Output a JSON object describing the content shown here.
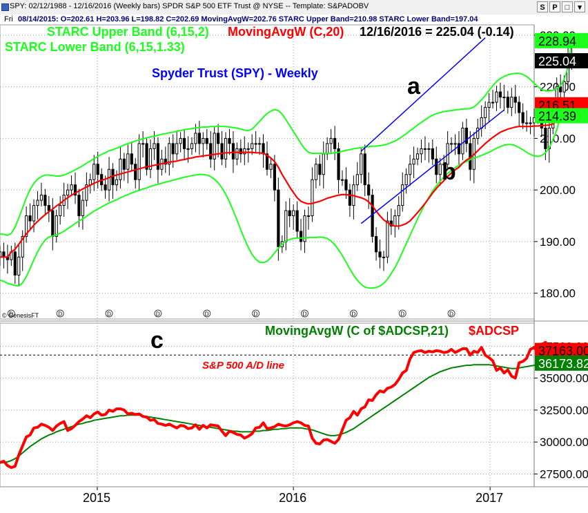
{
  "window": {
    "title": "SPY: 02/12/1988 - 12/16/2016 (Weekly bars)  SPDR S&P 500 ETF Trust @ NYSE  --  Template: S&PADOBV",
    "buttons": [
      "S",
      "P",
      "□",
      "▾"
    ]
  },
  "infobar": {
    "day": "Fri",
    "text": "08/14/2015: O=202.61  H=203.96  L=198.82  C=202.69  MovingAvgW=202.76  STARC Upper Band=210.98  STARC Lower Band=197.04"
  },
  "colors": {
    "price_bars": "#000000",
    "moving_avg": "#ff0000",
    "starc_bands": "#1cff1c",
    "channel": "#0000ff",
    "ad_line": "#ff0000",
    "ad_ma": "#008000",
    "title": "#0000ff"
  },
  "chart_data": [
    {
      "type": "candlestick",
      "title": "Spyder Trust (SPY) -  Weekly",
      "legend": {
        "upper_band": "STARC Upper Band (6,15,2)",
        "moving_avg": "MovingAvgW (C,20)",
        "quote": "12/16/2016 = 225.04 (-0.14)",
        "lower_band": "STARC Lower Band (6,15,1.33)"
      },
      "ylim": [
        175,
        232
      ],
      "yticks": [
        180,
        190,
        200,
        210,
        220,
        230
      ],
      "ytick_labels": [
        "180.00",
        "190.00",
        "200.00",
        "210.00",
        "220.00",
        "230.00"
      ],
      "last_values": {
        "upper_band": "228.94",
        "close": "225.04",
        "moving_avg": "216.51",
        "lower_band": "214.39"
      },
      "annotations": [
        "a",
        "b"
      ],
      "credit": "© GenesisFT",
      "grid": true,
      "x_start": "2014-07-04",
      "x_end": "2017-03-24",
      "close": [
        188.0,
        187.0,
        186.5,
        188.0,
        183.5,
        187.0,
        191.0,
        195.0,
        194.0,
        197.0,
        198.0,
        199.0,
        197.0,
        196.0,
        191.0,
        195.0,
        197.0,
        199.0,
        200.0,
        201.0,
        199.0,
        195.0,
        198.0,
        201.0,
        202.0,
        205.0,
        203.0,
        201.0,
        200.0,
        204.0,
        201.0,
        202.0,
        206.0,
        204.0,
        207.0,
        205.0,
        202.0,
        209.0,
        209.0,
        204.0,
        208.0,
        209.0,
        204.0,
        206.0,
        205.0,
        209.0,
        207.0,
        209.0,
        210.0,
        208.0,
        208.0,
        209.0,
        211.0,
        209.0,
        210.0,
        209.0,
        206.0,
        211.0,
        209.0,
        206.0,
        210.0,
        209.0,
        206.0,
        208.0,
        207.0,
        208.0,
        208.0,
        209.0,
        209.0,
        209.0,
        207.0,
        204.0,
        205.0,
        200.0,
        189.0,
        190.0,
        196.0,
        195.0,
        196.0,
        192.0,
        190.0,
        195.0,
        195.0,
        202.0,
        205.0,
        203.0,
        207.0,
        209.0,
        210.0,
        208.0,
        202.0,
        202.0,
        200.0,
        197.0,
        201.0,
        203.0,
        207.0,
        201.0,
        199.0,
        191.0,
        188.0,
        187.0,
        187.0,
        194.0,
        193.0,
        195.0,
        197.0,
        201.0,
        203.0,
        205.0,
        206.0,
        207.0,
        208.0,
        208.0,
        208.0,
        206.0,
        203.0,
        205.0,
        205.0,
        209.0,
        209.0,
        209.0,
        207.0,
        212.0,
        209.0,
        204.0,
        210.0,
        212.0,
        214.0,
        216.0,
        217.0,
        217.0,
        219.0,
        218.0,
        218.0,
        216.0,
        218.0,
        217.0,
        215.0,
        213.0,
        213.0,
        213.0,
        214.0,
        214.0,
        212.0,
        208.0,
        212.0,
        215.0,
        220.0,
        219.0,
        221.0,
        226.0,
        225.0
      ],
      "moving_avg": [
        187.0,
        187.0,
        187.0,
        188.0,
        188.5,
        189.5,
        190.5,
        191.5,
        192.3,
        193.2,
        193.9,
        194.6,
        195.2,
        195.8,
        196.3,
        196.9,
        197.4,
        198.0,
        198.5,
        199.0,
        199.4,
        199.8,
        200.2,
        200.6,
        200.9,
        201.3,
        201.6,
        201.9,
        202.1,
        202.4,
        202.7,
        202.9,
        203.1,
        203.3,
        203.5,
        203.7,
        203.9,
        204.1,
        204.3,
        204.5,
        204.6,
        204.8,
        204.9,
        205.1,
        205.2,
        205.4,
        205.5,
        205.6,
        205.8,
        205.9,
        206.1,
        206.2,
        206.4,
        206.5,
        206.6,
        206.7,
        206.8,
        206.9,
        207.0,
        207.1,
        207.2,
        207.2,
        207.3,
        207.3,
        207.3,
        207.3,
        207.3,
        207.3,
        207.2,
        207.2,
        207.1,
        206.7,
        206.2,
        205.5,
        204.4,
        203.0,
        201.8,
        200.6,
        199.5,
        198.5,
        197.8,
        197.5,
        197.3,
        197.4,
        197.6,
        197.8,
        198.1,
        198.4,
        198.6,
        198.8,
        199.0,
        199.1,
        199.1,
        199.0,
        198.9,
        198.7,
        198.5,
        198.2,
        197.7,
        196.9,
        195.9,
        195.0,
        194.2,
        193.7,
        193.2,
        193.0,
        193.0,
        193.2,
        193.5,
        194.0,
        194.8,
        195.6,
        196.5,
        197.4,
        198.4,
        199.4,
        200.3,
        201.1,
        201.8,
        202.6,
        203.3,
        203.9,
        204.4,
        205.2,
        205.8,
        206.2,
        206.9,
        207.6,
        208.3,
        209.0,
        209.6,
        210.2,
        210.7,
        211.2,
        211.5,
        211.8,
        212.0,
        212.2,
        212.3,
        212.3,
        212.3,
        212.3,
        212.4,
        212.4,
        212.5,
        212.5,
        212.6,
        212.8,
        213.3,
        213.8,
        214.4,
        215.2,
        216.5
      ],
      "upper_band": [
        191.5,
        191.4,
        191.2,
        191.6,
        192.8,
        194.6,
        196.5,
        198.5,
        200.1,
        201.3,
        202.1,
        202.6,
        202.9,
        202.9,
        202.8,
        202.7,
        202.7,
        202.9,
        203.2,
        203.5,
        203.9,
        204.3,
        204.7,
        205.2,
        205.6,
        206.1,
        206.5,
        206.9,
        207.2,
        207.6,
        207.8,
        208.1,
        208.4,
        208.7,
        209.0,
        209.2,
        209.5,
        209.7,
        209.9,
        210.1,
        210.3,
        210.4,
        210.6,
        210.8,
        210.9,
        211.1,
        211.2,
        211.4,
        211.5,
        211.7,
        211.8,
        211.9,
        212.0,
        212.1,
        212.2,
        212.2,
        212.3,
        212.3,
        212.4,
        212.3,
        212.3,
        212.2,
        212.1,
        212.0,
        211.8,
        211.6,
        211.5,
        211.8,
        212.5,
        213.3,
        214.1,
        214.8,
        215.3,
        215.6,
        215.4,
        214.7,
        213.6,
        212.5,
        211.3,
        210.2,
        209.0,
        208.0,
        207.3,
        207.1,
        207.1,
        207.1,
        207.1,
        207.1,
        207.1,
        207.2,
        207.3,
        207.5,
        207.7,
        207.8,
        208.0,
        208.1,
        208.2,
        208.3,
        208.4,
        208.5,
        208.5,
        208.6,
        208.7,
        208.9,
        209.2,
        209.5,
        209.9,
        210.4,
        210.9,
        211.5,
        212.0,
        212.6,
        213.1,
        213.6,
        214.1,
        214.5,
        214.8,
        215.0,
        215.2,
        215.3,
        215.4,
        215.5,
        215.6,
        215.7,
        215.7,
        215.8,
        216.1,
        216.7,
        217.5,
        218.3,
        219.3,
        220.2,
        221.0,
        221.6,
        222.0,
        222.3,
        222.5,
        222.6,
        222.6,
        222.4,
        222.0,
        221.4,
        220.7,
        220.0,
        219.5,
        219.2,
        219.2,
        219.3,
        219.6,
        220.2,
        221.5,
        223.8,
        228.9
      ],
      "lower_band": [
        182.5,
        182.3,
        181.9,
        181.7,
        181.5,
        181.4,
        182.0,
        183.2,
        184.8,
        186.5,
        188.0,
        189.3,
        190.3,
        190.9,
        191.1,
        191.3,
        191.6,
        192.0,
        192.5,
        193.0,
        193.5,
        194.0,
        194.4,
        194.9,
        195.4,
        195.9,
        196.3,
        196.7,
        197.1,
        197.5,
        197.8,
        198.1,
        198.5,
        198.8,
        199.1,
        199.4,
        199.7,
        199.9,
        200.2,
        200.4,
        200.7,
        200.9,
        201.1,
        201.3,
        201.5,
        201.7,
        201.9,
        202.1,
        202.3,
        202.5,
        202.6,
        202.8,
        202.9,
        203.0,
        203.0,
        202.9,
        202.6,
        202.1,
        201.4,
        200.4,
        199.2,
        197.7,
        196.0,
        194.2,
        192.3,
        190.5,
        188.9,
        187.5,
        186.6,
        186.0,
        185.9,
        186.2,
        186.9,
        187.8,
        188.7,
        189.5,
        190.1,
        190.4,
        190.6,
        190.7,
        190.7,
        190.7,
        190.8,
        190.8,
        190.8,
        190.9,
        190.8,
        190.6,
        190.1,
        189.4,
        188.4,
        187.3,
        186.0,
        184.7,
        183.5,
        182.5,
        181.7,
        181.2,
        181.0,
        181.0,
        181.1,
        181.4,
        181.9,
        182.7,
        183.8,
        185.0,
        186.4,
        188.0,
        189.6,
        191.2,
        192.8,
        194.4,
        195.9,
        197.3,
        198.6,
        199.8,
        200.8,
        201.7,
        202.5,
        203.2,
        203.8,
        204.3,
        204.8,
        205.2,
        205.5,
        205.9,
        206.2,
        206.4,
        206.7,
        207.0,
        207.3,
        207.7,
        208.1,
        208.4,
        208.7,
        208.8,
        208.8,
        208.6,
        208.2,
        207.8,
        207.3,
        206.9,
        206.6,
        206.5,
        206.7,
        207.2,
        208.2,
        209.8,
        211.6,
        214.4
      ],
      "channel_upper": {
        "start": [
          "2016-05-06",
          207.5
        ],
        "end": [
          "2016-12-23",
          229.5
        ]
      },
      "channel_lower": {
        "start": [
          "2016-05-06",
          193.5
        ],
        "end": [
          "2017-01-27",
          215.5
        ]
      },
      "earnings_markers": [
        "2014-07-25",
        "2014-10-24",
        "2015-01-23",
        "2015-04-24",
        "2015-07-24",
        "2015-10-23",
        "2016-01-22",
        "2016-04-22",
        "2016-07-22",
        "2016-10-21"
      ]
    },
    {
      "type": "line",
      "series": [
        {
          "name": "$ADCSP",
          "last_label": "37163.00",
          "values": [
            28400,
            28500,
            28150,
            28000,
            28100,
            29000,
            29700,
            30400,
            30550,
            31100,
            31150,
            31400,
            31300,
            31150,
            30900,
            31250,
            31450,
            31600,
            30900,
            31050,
            31300,
            31600,
            31800,
            32050,
            31900,
            32200,
            32350,
            32100,
            32150,
            32500,
            32400,
            32600,
            32600,
            32500,
            32200,
            32250,
            32150,
            32200,
            32000,
            31950,
            31700,
            31750,
            31450,
            31400,
            31300,
            31400,
            31250,
            31100,
            31300,
            31250,
            31050,
            31100,
            31350,
            31000,
            31300,
            31100,
            31350,
            31300,
            31250,
            30850,
            30500,
            30850,
            30750,
            30600,
            30550,
            30300,
            30450,
            30650,
            31100,
            31150,
            31500,
            31050,
            31100,
            31200,
            31400,
            31300,
            31250,
            31350,
            31500,
            31600,
            31500,
            31300,
            31250,
            30300,
            29900,
            29850,
            30150,
            30200,
            30050,
            29900,
            30200,
            30950,
            31700,
            31900,
            32400,
            32100,
            32600,
            32750,
            33300,
            33250,
            33700,
            34000,
            33900,
            34200,
            34300,
            34500,
            34900,
            35400,
            35600,
            36500,
            37000,
            37100,
            37150,
            37000,
            37100,
            37050,
            37150,
            37100,
            37000,
            37050,
            37250,
            37000,
            37150,
            37300,
            37300,
            36800,
            37100,
            37000,
            37400,
            36800,
            36600,
            36350,
            35600,
            35800,
            35400,
            35650,
            35150,
            35000,
            36200,
            36300,
            36550,
            37250,
            37400,
            37050,
            37600,
            37800,
            37450,
            37163
          ]
        },
        {
          "name": "MovingAvgW (C of $ADCSP,21)",
          "last_label": "36173.82",
          "values": [
            28350,
            28400,
            28450,
            28550,
            28700,
            28900,
            29150,
            29400,
            29650,
            29850,
            30050,
            30250,
            30400,
            30550,
            30650,
            30800,
            30900,
            31000,
            31100,
            31200,
            31300,
            31400,
            31450,
            31550,
            31600,
            31700,
            31750,
            31800,
            31850,
            31900,
            31950,
            32000,
            32050,
            32050,
            32100,
            32100,
            32100,
            32100,
            32050,
            32000,
            31950,
            31900,
            31850,
            31800,
            31750,
            31700,
            31650,
            31600,
            31550,
            31500,
            31450,
            31400,
            31350,
            31300,
            31250,
            31200,
            31150,
            31100,
            31050,
            31000,
            30950,
            30900,
            30850,
            30850,
            30800,
            30800,
            30800,
            30800,
            30850,
            30850,
            30900,
            30900,
            30950,
            31000,
            31000,
            31050,
            31050,
            31100,
            31100,
            31100,
            31100,
            31050,
            31000,
            30950,
            30850,
            30750,
            30650,
            30550,
            30500,
            30500,
            30550,
            30650,
            30750,
            30900,
            31050,
            31250,
            31450,
            31650,
            31850,
            32050,
            32250,
            32450,
            32650,
            32850,
            33050,
            33250,
            33450,
            33650,
            33850,
            34050,
            34250,
            34450,
            34650,
            34850,
            35050,
            35200,
            35350,
            35500,
            35600,
            35700,
            35800,
            35850,
            35900,
            35950,
            36000,
            36000,
            36050,
            36050,
            36050,
            36050,
            36050,
            36000,
            35950,
            35900,
            35850,
            35800,
            35750,
            35750,
            35800,
            35850,
            35900,
            35950,
            36000,
            36050,
            36100,
            36150,
            36170,
            36174
          ]
        }
      ],
      "labels": {
        "ma_label": "MovingAvgW (C of $ADCSP,21)",
        "series_label": "$ADCSP",
        "annotation": "S&P 500 A/D line",
        "marker": "c"
      },
      "ylim": [
        26500,
        39300
      ],
      "yticks": [
        27500,
        30000,
        32500,
        35000,
        37500
      ],
      "ytick_labels": [
        "27500.00",
        "30000.00",
        "32500.00",
        "35000.00",
        "37500.00"
      ],
      "reference_level": 36800,
      "x_labels": [
        "2015",
        "2016",
        "2017"
      ],
      "grid": true
    }
  ]
}
